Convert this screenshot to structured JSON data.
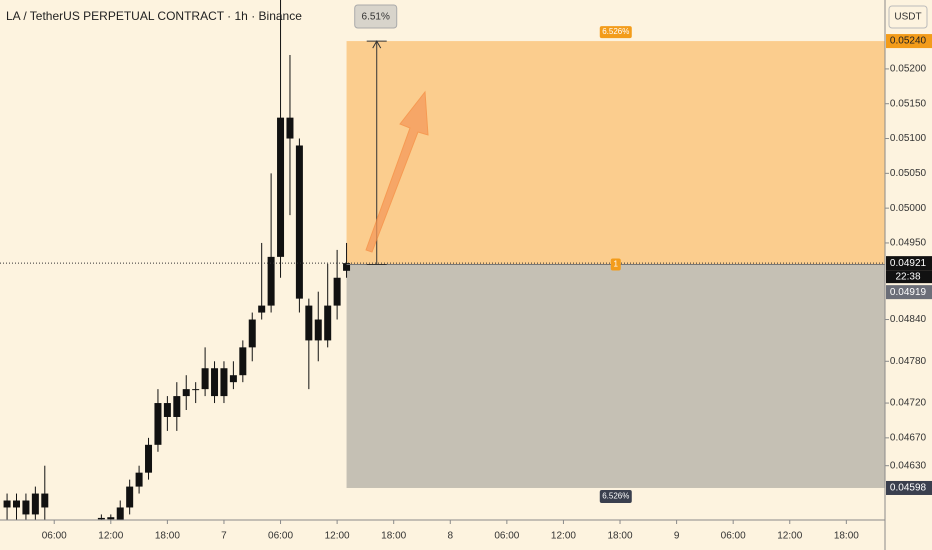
{
  "chart_data": {
    "type": "candlestick",
    "title": "LA / TetherUS PERPETUAL CONTRACT · 1h · Binance",
    "currency": "USDT",
    "x": [
      -23,
      -22,
      -21,
      -20,
      -19,
      -13,
      -12,
      -11,
      -10,
      -9,
      -8,
      -7,
      -6,
      -5,
      -4,
      -3,
      -2,
      -1,
      0,
      1,
      2,
      3,
      4,
      5,
      6,
      7,
      8,
      9,
      10,
      11,
      12,
      13
    ],
    "open": [
      0.0458,
      0.0457,
      0.0458,
      0.0456,
      0.0459,
      0.04555,
      0.04553,
      0.0455,
      0.0457,
      0.046,
      0.0462,
      0.0466,
      0.0472,
      0.047,
      0.0473,
      0.0474,
      0.0474,
      0.0477,
      0.0477,
      0.0475,
      0.0476,
      0.048,
      0.0485,
      0.0486,
      0.0493,
      0.0513,
      0.0509,
      0.0486,
      0.0484,
      0.0481,
      0.0486,
      0.0491
    ],
    "high": [
      0.0459,
      0.0459,
      0.0459,
      0.046,
      0.0463,
      0.0456,
      0.0456,
      0.0458,
      0.0461,
      0.0463,
      0.0467,
      0.0474,
      0.0473,
      0.0475,
      0.0476,
      0.0475,
      0.048,
      0.0478,
      0.0478,
      0.0478,
      0.0481,
      0.0485,
      0.0495,
      0.0505,
      0.053,
      0.0522,
      0.051,
      0.0487,
      0.0488,
      0.0492,
      0.0494,
      0.0495
    ],
    "low": [
      0.0455,
      0.0455,
      0.0455,
      0.0455,
      0.0455,
      0.0455,
      0.0455,
      0.0455,
      0.0456,
      0.0459,
      0.0461,
      0.0465,
      0.0468,
      0.0468,
      0.0471,
      0.0472,
      0.0473,
      0.0472,
      0.0472,
      0.0474,
      0.0475,
      0.0478,
      0.0484,
      0.0485,
      0.049,
      0.0499,
      0.0485,
      0.0474,
      0.0478,
      0.048,
      0.0484,
      0.049
    ],
    "close": [
      0.0457,
      0.0458,
      0.0456,
      0.0459,
      0.0457,
      0.04553,
      0.04556,
      0.0457,
      0.046,
      0.0462,
      0.0466,
      0.0472,
      0.047,
      0.0473,
      0.0474,
      0.0474,
      0.0477,
      0.0473,
      0.0473,
      0.0476,
      0.048,
      0.0484,
      0.0486,
      0.0493,
      0.0513,
      0.051,
      0.0487,
      0.0481,
      0.0481,
      0.0486,
      0.049,
      0.04921
    ],
    "color": "#111111",
    "xlim": [
      -23.75,
      70.1
    ],
    "xticks": [
      {
        "value": -18,
        "label": "06:00"
      },
      {
        "value": -12,
        "label": "12:00"
      },
      {
        "value": -6,
        "label": "18:00"
      },
      {
        "value": 0,
        "label": "7"
      },
      {
        "value": 6,
        "label": "06:00"
      },
      {
        "value": 12,
        "label": "12:00"
      },
      {
        "value": 18,
        "label": "18:00"
      },
      {
        "value": 24,
        "label": "8"
      },
      {
        "value": 30,
        "label": "06:00"
      },
      {
        "value": 36,
        "label": "12:00"
      },
      {
        "value": 42,
        "label": "18:00"
      },
      {
        "value": 48,
        "label": "9"
      },
      {
        "value": 54,
        "label": "06:00"
      },
      {
        "value": 60,
        "label": "12:00"
      },
      {
        "value": 66,
        "label": "18:00"
      }
    ],
    "ylim": [
      0.04552,
      0.05299
    ],
    "yticks": [
      {
        "value": 0.052,
        "label": "0.05200"
      },
      {
        "value": 0.0515,
        "label": "0.05150"
      },
      {
        "value": 0.051,
        "label": "0.05100"
      },
      {
        "value": 0.0505,
        "label": "0.05050"
      },
      {
        "value": 0.05,
        "label": "0.05000"
      },
      {
        "value": 0.0495,
        "label": "0.04950"
      },
      {
        "value": 0.0484,
        "label": "0.04840"
      },
      {
        "value": 0.0478,
        "label": "0.04780"
      },
      {
        "value": 0.0472,
        "label": "0.04720"
      },
      {
        "value": 0.0467,
        "label": "0.04670"
      },
      {
        "value": 0.0463,
        "label": "0.04630"
      }
    ],
    "current_price": 0.04921,
    "countdown": "22:38",
    "position": {
      "start": 13,
      "entry": 0.04919,
      "target": {
        "value": 0.0524,
        "label": "0.05240"
      },
      "stop": 0.04598,
      "target_label": "6.526%",
      "stop_label": "6.526%",
      "move_label": "6.51%",
      "qty_label": "1",
      "target_color": "#fbc985",
      "stop_color": "#c5c0b4"
    }
  }
}
